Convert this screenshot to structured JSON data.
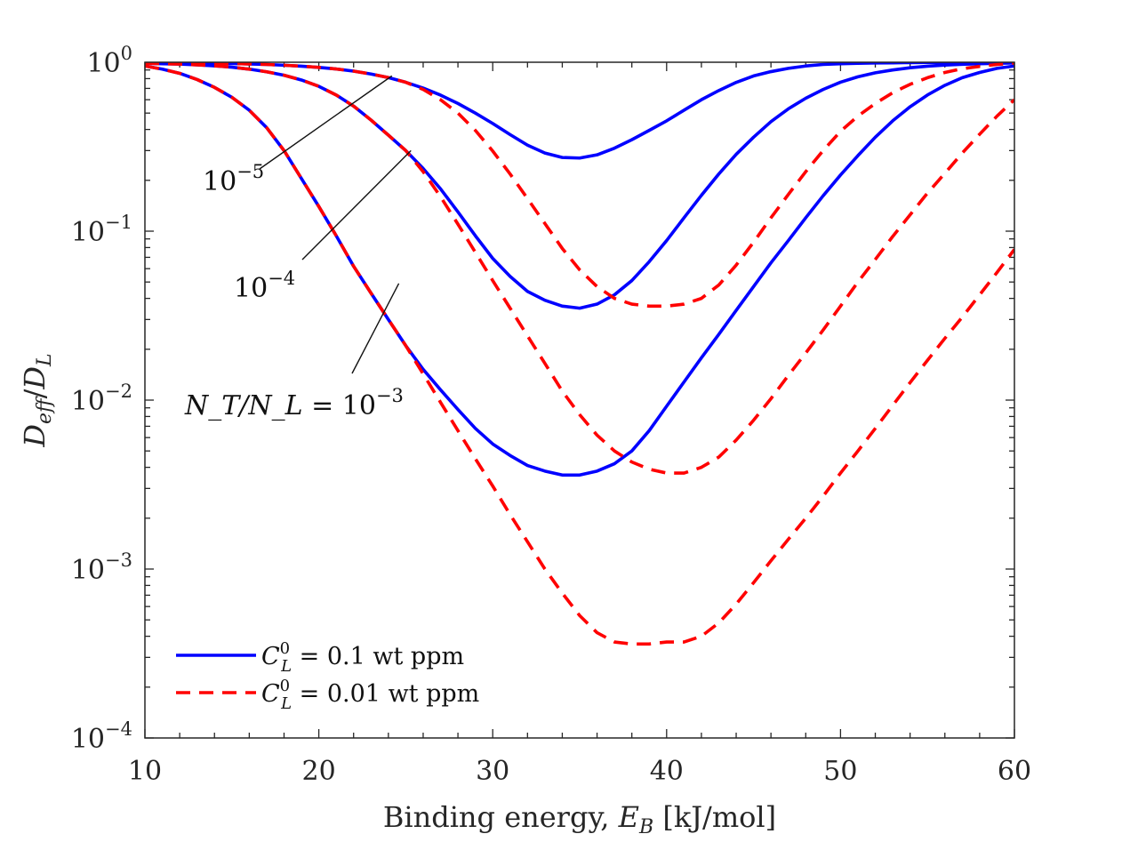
{
  "chart_data": {
    "type": "line",
    "title": "",
    "xlabel": {
      "prefix": "Binding energy, ",
      "var": "E",
      "sub": "B",
      "unit": " [kJ/mol]"
    },
    "ylabel": {
      "num": "D",
      "num_sub": "eff",
      "slash": "/",
      "den": "D",
      "den_sub": "L"
    },
    "xlim": [
      10,
      60
    ],
    "ylim": [
      0.0001,
      1
    ],
    "yscale": "log",
    "x_ticks": [
      "10",
      "20",
      "30",
      "40",
      "50",
      "60"
    ],
    "y_ticks": [
      {
        "base": "10",
        "exp": "0",
        "value": 1
      },
      {
        "base": "10",
        "exp": "−1",
        "value": 0.1
      },
      {
        "base": "10",
        "exp": "−2",
        "value": 0.01
      },
      {
        "base": "10",
        "exp": "−3",
        "value": 0.001
      },
      {
        "base": "10",
        "exp": "−4",
        "value": 0.0001
      }
    ],
    "x": [
      10,
      11,
      12,
      13,
      14,
      15,
      16,
      17,
      18,
      19,
      20,
      21,
      22,
      23,
      24,
      25,
      26,
      27,
      28,
      29,
      30,
      31,
      32,
      33,
      34,
      35,
      36,
      37,
      38,
      39,
      40,
      41,
      42,
      43,
      44,
      45,
      46,
      47,
      48,
      49,
      50,
      51,
      52,
      53,
      54,
      55,
      56,
      57,
      58,
      59,
      60
    ],
    "series": [
      {
        "name": "C_L^0 = 0.1 wt ppm, N_T/N_L = 10^-5",
        "style": "solid",
        "color": "#0000ff",
        "values": [
          0.992,
          0.991,
          0.99,
          0.988,
          0.985,
          0.982,
          0.977,
          0.97,
          0.96,
          0.948,
          0.932,
          0.912,
          0.886,
          0.852,
          0.811,
          0.761,
          0.703,
          0.639,
          0.57,
          0.5,
          0.434,
          0.373,
          0.323,
          0.29,
          0.273,
          0.271,
          0.283,
          0.31,
          0.348,
          0.395,
          0.45,
          0.52,
          0.6,
          0.68,
          0.76,
          0.83,
          0.88,
          0.92,
          0.95,
          0.97,
          0.98,
          0.985,
          0.99,
          0.992,
          0.995,
          0.997,
          0.998,
          0.998,
          0.999,
          0.999,
          1.0
        ]
      },
      {
        "name": "C_L^0 = 0.1 wt ppm, N_T/N_L = 10^-4",
        "style": "solid",
        "color": "#0000ff",
        "values": [
          0.985,
          0.98,
          0.975,
          0.965,
          0.952,
          0.935,
          0.91,
          0.878,
          0.838,
          0.785,
          0.72,
          0.64,
          0.55,
          0.455,
          0.37,
          0.3,
          0.235,
          0.178,
          0.13,
          0.094,
          0.069,
          0.054,
          0.044,
          0.039,
          0.036,
          0.035,
          0.037,
          0.042,
          0.051,
          0.066,
          0.088,
          0.12,
          0.163,
          0.218,
          0.285,
          0.36,
          0.445,
          0.53,
          0.612,
          0.69,
          0.762,
          0.82,
          0.866,
          0.9,
          0.928,
          0.948,
          0.962,
          0.972,
          0.98,
          0.986,
          0.99
        ]
      },
      {
        "name": "C_L^0 = 0.1 wt ppm, N_T/N_L = 10^-3",
        "style": "solid",
        "color": "#0000ff",
        "values": [
          0.95,
          0.91,
          0.86,
          0.79,
          0.71,
          0.62,
          0.52,
          0.41,
          0.3,
          0.205,
          0.14,
          0.094,
          0.062,
          0.043,
          0.03,
          0.021,
          0.0152,
          0.0115,
          0.0088,
          0.0068,
          0.0055,
          0.0047,
          0.0041,
          0.0038,
          0.0036,
          0.0036,
          0.0038,
          0.0042,
          0.005,
          0.0066,
          0.0092,
          0.0128,
          0.0178,
          0.0245,
          0.034,
          0.047,
          0.065,
          0.088,
          0.12,
          0.162,
          0.215,
          0.28,
          0.36,
          0.45,
          0.545,
          0.64,
          0.73,
          0.81,
          0.87,
          0.92,
          0.95
        ]
      },
      {
        "name": "C_L^0 = 0.01 wt ppm, N_T/N_L = 10^-5",
        "style": "dashed",
        "color": "#ff0000",
        "values": [
          0.992,
          0.991,
          0.99,
          0.988,
          0.985,
          0.982,
          0.977,
          0.97,
          0.96,
          0.948,
          0.932,
          0.912,
          0.886,
          0.852,
          0.811,
          0.761,
          0.69,
          0.6,
          0.5,
          0.395,
          0.298,
          0.218,
          0.156,
          0.111,
          0.079,
          0.059,
          0.047,
          0.04,
          0.037,
          0.036,
          0.036,
          0.037,
          0.04,
          0.048,
          0.063,
          0.086,
          0.12,
          0.165,
          0.225,
          0.3,
          0.39,
          0.48,
          0.57,
          0.66,
          0.74,
          0.81,
          0.87,
          0.915,
          0.945,
          0.97,
          0.99
        ]
      },
      {
        "name": "C_L^0 = 0.01 wt ppm, N_T/N_L = 10^-4",
        "style": "dashed",
        "color": "#ff0000",
        "values": [
          0.985,
          0.98,
          0.975,
          0.965,
          0.952,
          0.935,
          0.91,
          0.878,
          0.838,
          0.785,
          0.72,
          0.64,
          0.55,
          0.455,
          0.37,
          0.3,
          0.225,
          0.16,
          0.11,
          0.075,
          0.051,
          0.035,
          0.024,
          0.0165,
          0.0113,
          0.0082,
          0.0062,
          0.005,
          0.0043,
          0.0039,
          0.0037,
          0.0037,
          0.004,
          0.0046,
          0.0058,
          0.0076,
          0.0102,
          0.014,
          0.019,
          0.026,
          0.036,
          0.05,
          0.068,
          0.093,
          0.125,
          0.168,
          0.22,
          0.29,
          0.375,
          0.48,
          0.6
        ]
      },
      {
        "name": "C_L^0 = 0.01 wt ppm, N_T/N_L = 10^-3",
        "style": "dashed",
        "color": "#ff0000",
        "values": [
          0.95,
          0.91,
          0.86,
          0.79,
          0.71,
          0.62,
          0.52,
          0.41,
          0.3,
          0.205,
          0.14,
          0.094,
          0.062,
          0.043,
          0.03,
          0.021,
          0.0143,
          0.0097,
          0.0066,
          0.0045,
          0.0031,
          0.0021,
          0.00145,
          0.001,
          0.00072,
          0.00053,
          0.00042,
          0.00037,
          0.00036,
          0.00036,
          0.00037,
          0.00037,
          0.0004,
          0.00048,
          0.00062,
          0.00083,
          0.00112,
          0.0015,
          0.002,
          0.0027,
          0.0037,
          0.005,
          0.0068,
          0.0093,
          0.0127,
          0.0172,
          0.0232,
          0.031,
          0.042,
          0.057,
          0.078
        ]
      }
    ],
    "annotations": [
      {
        "text_base": "10",
        "text_exp": "−5",
        "prefix": "",
        "target_x": 24.2,
        "target_y": 0.83
      },
      {
        "text_base": "10",
        "text_exp": "−4",
        "prefix": "",
        "target_x": 25.3,
        "target_y": 0.3
      },
      {
        "text_base": "10",
        "text_exp": "−3",
        "prefix": "N_T/N_L = ",
        "target_x": 24.6,
        "target_y": 0.049
      }
    ],
    "legend": {
      "position": "bottom-left",
      "entries": [
        {
          "style": "solid",
          "color": "#0000ff",
          "var": "C",
          "sub": "L",
          "sup": "0",
          "text": " = 0.1 wt ppm"
        },
        {
          "style": "dashed",
          "color": "#ff0000",
          "var": "C",
          "sub": "L",
          "sup": "0",
          "text": " = 0.01 wt ppm"
        }
      ]
    }
  }
}
